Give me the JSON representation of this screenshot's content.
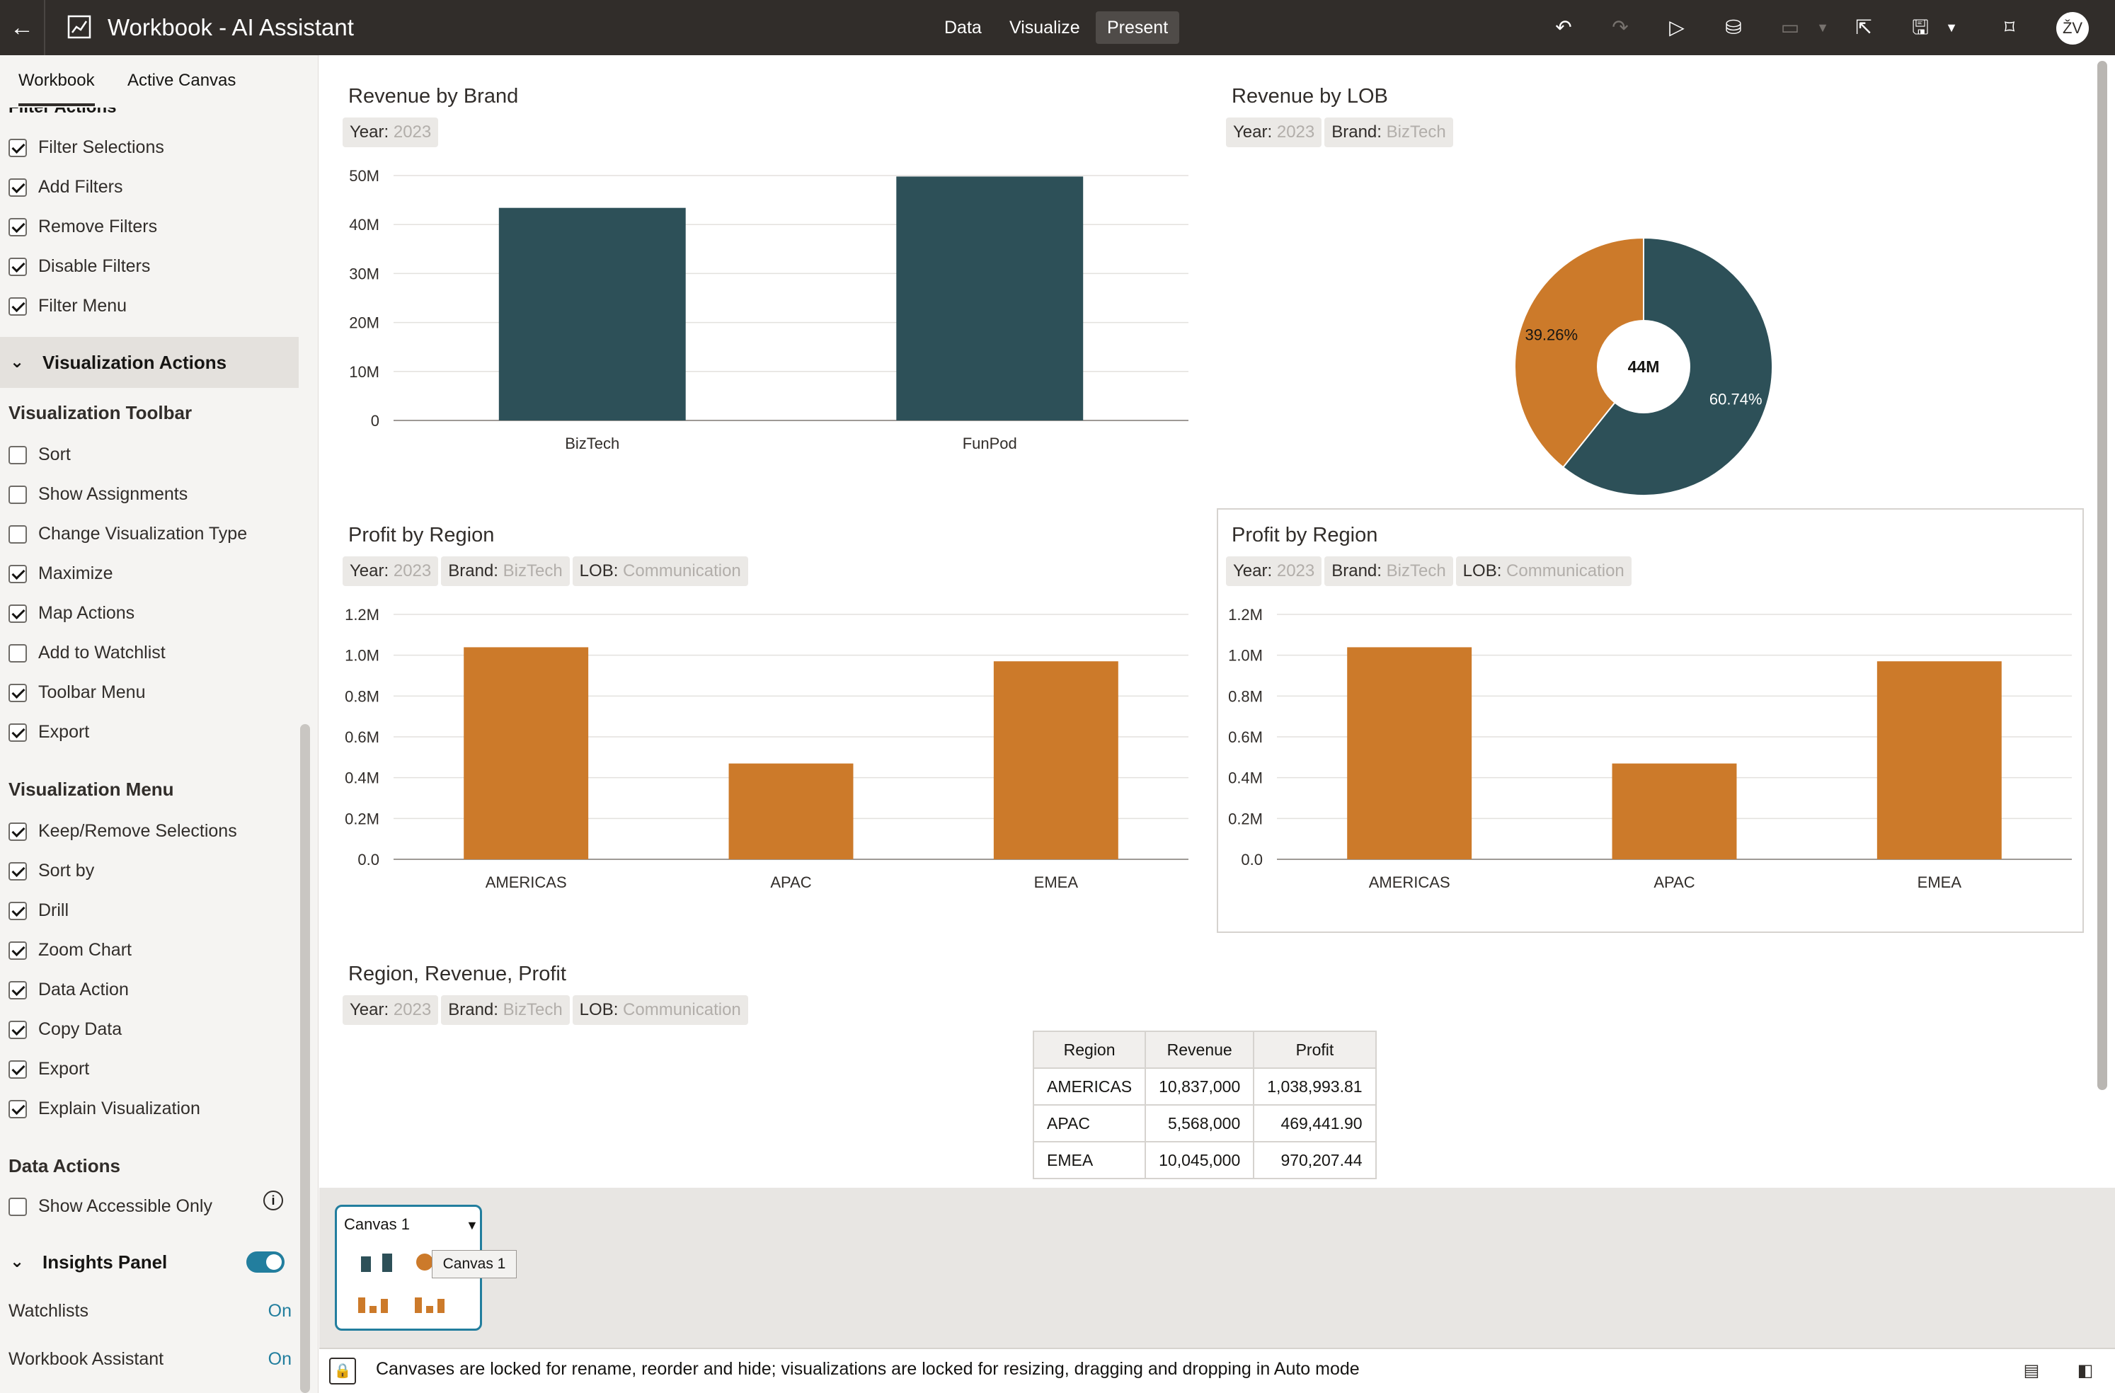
{
  "header": {
    "title": "Workbook - AI Assistant",
    "tabs": [
      {
        "label": "Data",
        "active": false
      },
      {
        "label": "Visualize",
        "active": false
      },
      {
        "label": "Present",
        "active": true
      }
    ],
    "avatar_initials": "ŽV",
    "icons": [
      "back-arrow-icon",
      "workbook-icon",
      "undo-icon",
      "redo-icon",
      "play-icon",
      "data-refresh-icon",
      "comment-icon",
      "share-icon",
      "save-icon",
      "bookmark-icon"
    ]
  },
  "left_panel": {
    "tabs": [
      {
        "label": "Workbook",
        "active": true
      },
      {
        "label": "Active Canvas",
        "active": false
      }
    ],
    "cutoff_section": "Filter Actions",
    "filter_actions": [
      {
        "label": "Filter Selections",
        "checked": true
      },
      {
        "label": "Add Filters",
        "checked": true
      },
      {
        "label": "Remove Filters",
        "checked": true
      },
      {
        "label": "Disable Filters",
        "checked": true
      },
      {
        "label": "Filter Menu",
        "checked": true
      }
    ],
    "viz_actions_title": "Visualization Actions",
    "viz_toolbar_title": "Visualization Toolbar",
    "viz_toolbar": [
      {
        "label": "Sort",
        "checked": false
      },
      {
        "label": "Show Assignments",
        "checked": false
      },
      {
        "label": "Change Visualization Type",
        "checked": false
      },
      {
        "label": "Maximize",
        "checked": true
      },
      {
        "label": "Map Actions",
        "checked": true
      },
      {
        "label": "Add to Watchlist",
        "checked": false
      },
      {
        "label": "Toolbar Menu",
        "checked": true
      },
      {
        "label": "Export",
        "checked": true
      }
    ],
    "viz_menu_title": "Visualization Menu",
    "viz_menu": [
      {
        "label": "Keep/Remove Selections",
        "checked": true
      },
      {
        "label": "Sort by",
        "checked": true
      },
      {
        "label": "Drill",
        "checked": true
      },
      {
        "label": "Zoom Chart",
        "checked": true
      },
      {
        "label": "Data Action",
        "checked": true
      },
      {
        "label": "Copy Data",
        "checked": true
      },
      {
        "label": "Export",
        "checked": true
      },
      {
        "label": "Explain Visualization",
        "checked": true
      }
    ],
    "data_actions_title": "Data Actions",
    "show_accessible_only": {
      "label": "Show Accessible Only",
      "checked": false
    },
    "insights_title": "Insights Panel",
    "insights_enabled": true,
    "watchlists": {
      "label": "Watchlists",
      "value": "On"
    },
    "workbook_assistant": {
      "label": "Workbook Assistant",
      "value": "On"
    }
  },
  "colors": {
    "teal_series": "#2d5058",
    "orange_series": "#cc7a2a",
    "accent": "#227e9e"
  },
  "canvas": {
    "revenue_by_brand": {
      "title": "Revenue by Brand",
      "filters": [
        {
          "label": "Year:",
          "value": "2023"
        }
      ]
    },
    "revenue_by_lob": {
      "title": "Revenue by LOB",
      "filters": [
        {
          "label": "Year:",
          "value": "2023"
        },
        {
          "label": "Brand:",
          "value": "BizTech"
        }
      ],
      "center_label": "44M"
    },
    "profit_by_region_1": {
      "title": "Profit by Region",
      "filters": [
        {
          "label": "Year:",
          "value": "2023"
        },
        {
          "label": "Brand:",
          "value": "BizTech"
        },
        {
          "label": "LOB:",
          "value": "Communication"
        }
      ]
    },
    "profit_by_region_2": {
      "title": "Profit by Region",
      "filters": [
        {
          "label": "Year:",
          "value": "2023"
        },
        {
          "label": "Brand:",
          "value": "BizTech"
        },
        {
          "label": "LOB:",
          "value": "Communication"
        }
      ]
    },
    "region_table": {
      "title": "Region, Revenue, Profit",
      "filters": [
        {
          "label": "Year:",
          "value": "2023"
        },
        {
          "label": "Brand:",
          "value": "BizTech"
        },
        {
          "label": "LOB:",
          "value": "Communication"
        }
      ],
      "columns": [
        "Region",
        "Revenue",
        "Profit"
      ],
      "rows": [
        [
          "AMERICAS",
          "10,837,000",
          "1,038,993.81"
        ],
        [
          "APAC",
          "5,568,000",
          "469,441.90"
        ],
        [
          "EMEA",
          "10,045,000",
          "970,207.44"
        ]
      ]
    }
  },
  "chart_data": [
    {
      "type": "bar",
      "title": "Revenue by Brand",
      "categories": [
        "BizTech",
        "FunPod"
      ],
      "values": [
        43400000,
        49800000
      ],
      "yticks": [
        "0",
        "10M",
        "20M",
        "30M",
        "40M",
        "50M"
      ],
      "ylim": [
        0,
        50000000
      ],
      "grid": true,
      "color": "#2d5058"
    },
    {
      "type": "pie",
      "title": "Revenue by LOB",
      "slices": [
        {
          "value": 60.74,
          "label": "60.74%",
          "color": "#2d5058"
        },
        {
          "value": 39.26,
          "label": "39.26%",
          "color": "#cc7a2a"
        }
      ],
      "center_label": "44M"
    },
    {
      "type": "bar",
      "title": "Profit by Region",
      "categories": [
        "AMERICAS",
        "APAC",
        "EMEA"
      ],
      "values": [
        1038993.81,
        469441.9,
        970207.44
      ],
      "yticks": [
        "0.0",
        "0.2M",
        "0.4M",
        "0.6M",
        "0.8M",
        "1.0M",
        "1.2M"
      ],
      "ylim": [
        0,
        1200000
      ],
      "grid": true,
      "color": "#cc7a2a"
    },
    {
      "type": "bar",
      "title": "Profit by Region",
      "categories": [
        "AMERICAS",
        "APAC",
        "EMEA"
      ],
      "values": [
        1038993.81,
        469441.9,
        970207.44
      ],
      "yticks": [
        "0.0",
        "0.2M",
        "0.4M",
        "0.6M",
        "0.8M",
        "1.0M",
        "1.2M"
      ],
      "ylim": [
        0,
        1200000
      ],
      "grid": true,
      "color": "#cc7a2a"
    }
  ],
  "filmstrip": {
    "canvas_label": "Canvas 1",
    "tooltip": "Canvas 1"
  },
  "status_bar": {
    "message": "Canvases are locked for rename, reorder and hide; visualizations are locked for resizing, dragging and dropping in Auto mode"
  }
}
